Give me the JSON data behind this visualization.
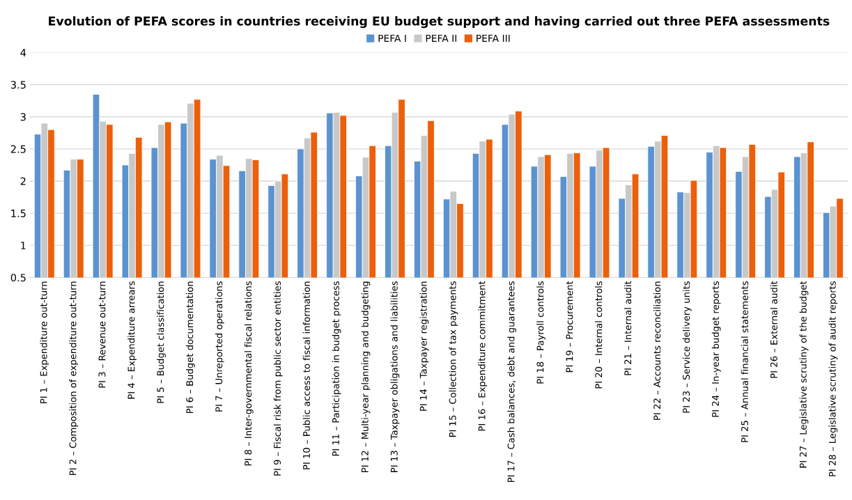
{
  "chart_data": {
    "type": "bar",
    "title": "Evolution of PEFA scores in countries receiving EU budget support and having carried out three PEFA assessments",
    "categories": [
      "PI 1 – Expenditure out-turn",
      "PI 2 – Composition of expenditure out-turn",
      "PI 3 – Revenue out-turn",
      "PI 4 – Expenditure arrears",
      "PI 5 – Budget classification",
      "PI 6 – Budget documentation",
      "PI 7 – Unreported operations",
      "PI 8 – Inter-governmental fiscal relations",
      "PI 9 – Fiscal risk from public sector entities",
      "PI 10 – Public access to fiscal information",
      "PI 11 – Participation in budget process",
      "PI 12 – Multi-year planning and budgeting",
      "PI 13 – Taxpayer obligations and liabilities",
      "PI 14 – Taxpayer registration",
      "PI 15 – Collection of tax payments",
      "PI 16 – Expenditure commitment",
      "PI 17 – Cash balances, debt and guarantees",
      "PI 18 – Payroll controls",
      "PI 19 – Procurement",
      "PI 20 – Internal controls",
      "PI 21 – Internal audit",
      "PI 22 – Accounts reconciliation",
      "PI 23 – Service delivery units",
      "PI 24 – In-year budget reports",
      "PI 25 – Annual financial statements",
      "PI 26 – External audit",
      "PI 27 – Legislative scrutiny of the budget",
      "PI 28 – Legislative scrutiny of audit reports"
    ],
    "series": [
      {
        "name": "PEFA I",
        "color": "#5b93d0",
        "values": [
          2.73,
          2.17,
          3.35,
          2.25,
          2.52,
          2.9,
          2.34,
          2.16,
          1.93,
          2.5,
          3.06,
          2.08,
          2.55,
          2.31,
          1.72,
          2.43,
          2.88,
          2.23,
          2.07,
          2.23,
          1.73,
          2.54,
          1.83,
          2.45,
          2.15,
          1.76,
          2.38,
          1.51
        ]
      },
      {
        "name": "PEFA II",
        "color": "#c8c8c8",
        "values": [
          2.9,
          2.34,
          2.93,
          2.43,
          2.88,
          3.21,
          2.4,
          2.35,
          2.0,
          2.67,
          3.07,
          2.37,
          3.07,
          2.71,
          1.84,
          2.62,
          3.04,
          2.38,
          2.43,
          2.48,
          1.94,
          2.62,
          1.82,
          2.55,
          2.38,
          1.87,
          2.44,
          1.61
        ]
      },
      {
        "name": "PEFA III",
        "color": "#ec5f0b",
        "values": [
          2.8,
          2.34,
          2.88,
          2.68,
          2.92,
          3.27,
          2.24,
          2.33,
          2.11,
          2.76,
          3.02,
          2.55,
          3.27,
          2.94,
          1.65,
          2.65,
          3.09,
          2.41,
          2.44,
          2.52,
          2.11,
          2.71,
          2.01,
          2.52,
          2.57,
          2.14,
          2.61,
          1.73
        ]
      }
    ],
    "ylim": [
      0.5,
      4
    ],
    "yticks": [
      0.5,
      1,
      1.5,
      2,
      2.5,
      3,
      3.5,
      4
    ],
    "grid": "y",
    "legend": "top"
  }
}
